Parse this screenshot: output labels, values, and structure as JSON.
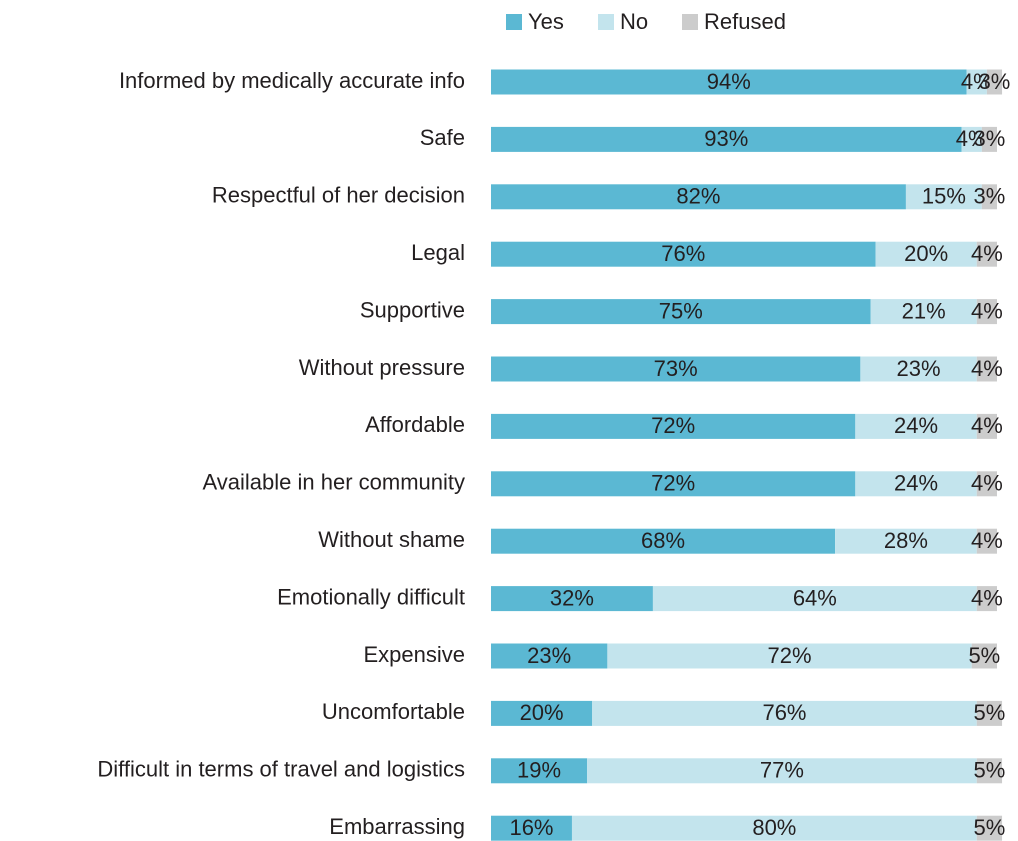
{
  "chart_data": {
    "type": "stacked-bar-horizontal",
    "categories": [
      "Informed by medically accurate info",
      "Safe",
      "Respectful of her decision",
      "Legal",
      "Supportive",
      "Without pressure",
      "Affordable",
      "Available in her community",
      "Without shame",
      "Emotionally difficult",
      "Expensive",
      "Uncomfortable",
      "Difficult in terms of travel and logistics",
      "Embarrassing"
    ],
    "series": [
      {
        "name": "Yes",
        "color": "#5bb8d3",
        "values": [
          94,
          93,
          82,
          76,
          75,
          73,
          72,
          72,
          68,
          32,
          23,
          20,
          19,
          16
        ],
        "value_labels": [
          "94%",
          "93%",
          "82%",
          "76%",
          "75%",
          "73%",
          "72%",
          "72%",
          "68%",
          "32%",
          "23%",
          "20%",
          "19%",
          "16%"
        ]
      },
      {
        "name": "No",
        "color": "#c3e4ed",
        "values": [
          4,
          4,
          15,
          20,
          21,
          23,
          24,
          24,
          28,
          64,
          72,
          76,
          77,
          80
        ],
        "value_labels": [
          "4%",
          "4%",
          "15%",
          "20%",
          "21%",
          "23%",
          "24%",
          "24%",
          "28%",
          "64%",
          "72%",
          "76%",
          "77%",
          "80%"
        ]
      },
      {
        "name": "Refused",
        "color": "#cccccc",
        "values": [
          3,
          3,
          3,
          4,
          4,
          4,
          4,
          4,
          4,
          4,
          5,
          5,
          5,
          5
        ],
        "value_labels": [
          "3%",
          "3%",
          "3%",
          "4%",
          "4%",
          "4%",
          "4%",
          "4%",
          "4%",
          "4%",
          "5%",
          "5%",
          "5%",
          "5%"
        ]
      }
    ],
    "xlim": [
      0,
      100
    ],
    "legend": "top"
  }
}
